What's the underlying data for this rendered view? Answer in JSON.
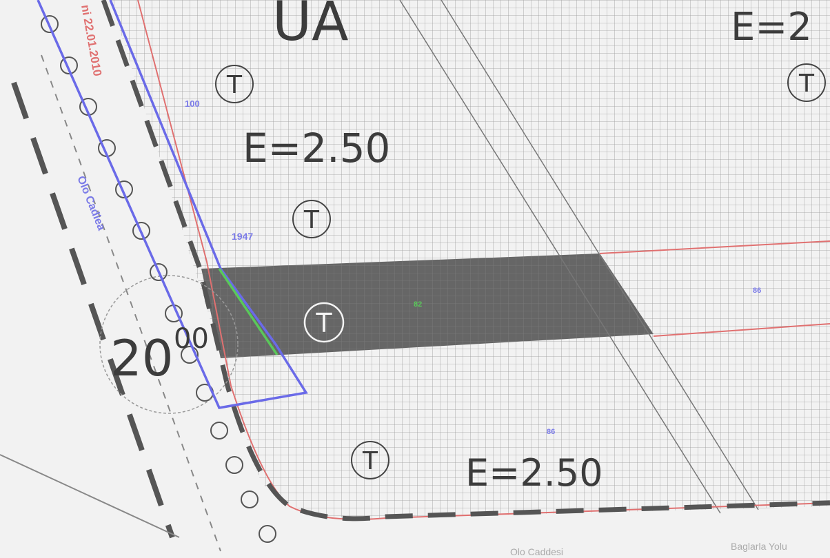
{
  "zones": {
    "top_left_zone": "UA",
    "top_right_zone": "E=2"
  },
  "labels": {
    "zoning_upper": "E=2.50",
    "zoning_lower": "E=2.50",
    "street_name": "Olo Cadiea",
    "date_stamp": "ni 22.01.2010",
    "dimension_value": "20",
    "dimension_superscript": "00",
    "parcel_no_upper": "100",
    "parcel_no_mid": "1947",
    "parcel_no_center": "82",
    "parcel_no_right": "86",
    "parcel_no_lower": "86",
    "bottom_caption_center": "Olo Caddesi",
    "bottom_caption_right": "Baglarla Yolu"
  },
  "markers": {
    "tree_symbol": "T"
  },
  "colors": {
    "grid": "#9a9a9a",
    "parcel_fill": "#5a5a5a",
    "blue_outline": "#6a6ae8",
    "green_line": "#5ac85a",
    "red_line": "#e07070",
    "label_blue": "#7a7ae8"
  }
}
